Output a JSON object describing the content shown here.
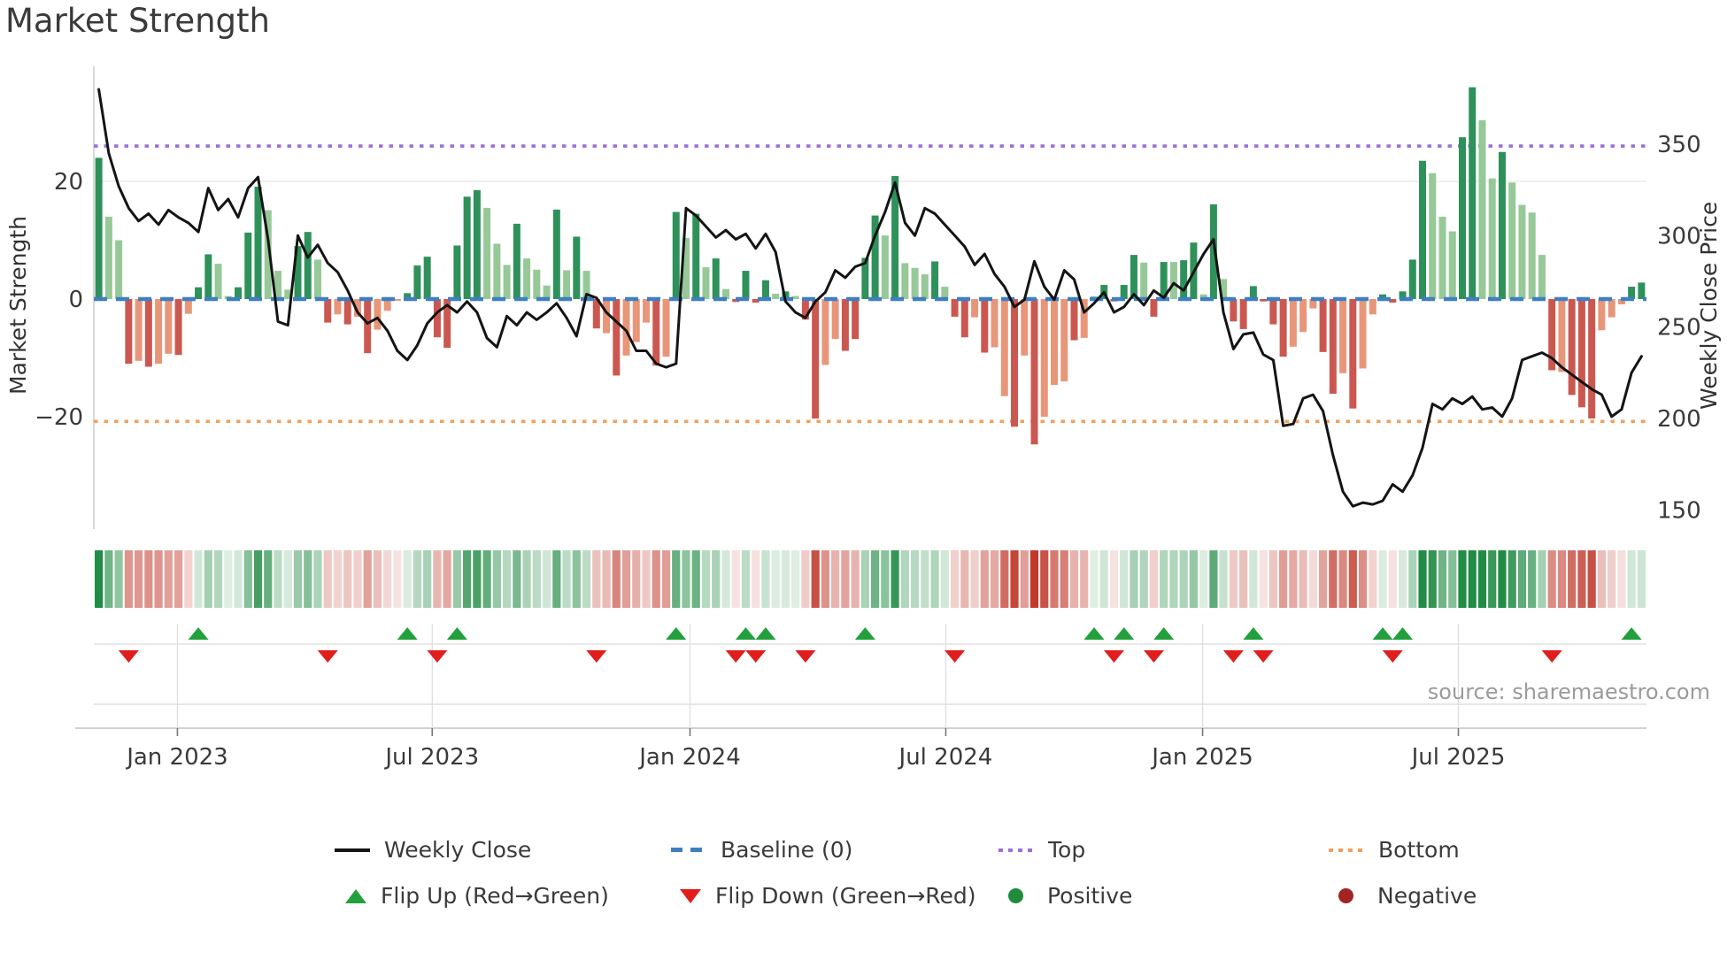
{
  "title": "Market Strength",
  "left_axis": {
    "label": "Market Strength",
    "ticks": [
      {
        "value": 20,
        "label": "20"
      },
      {
        "value": 0,
        "label": "0"
      },
      {
        "value": -20,
        "label": "−20"
      }
    ]
  },
  "right_axis": {
    "label": "Weekly Close Price",
    "ticks": [
      {
        "value": 350,
        "label": "350"
      },
      {
        "value": 300,
        "label": "300"
      },
      {
        "value": 250,
        "label": "250"
      },
      {
        "value": 200,
        "label": "200"
      },
      {
        "value": 150,
        "label": "150"
      }
    ]
  },
  "source": "source: sharemaestro.com",
  "palette": {
    "bar_dark_green": "#2f915a",
    "bar_light_green": "#97c897",
    "bar_salmon": "#e8967a",
    "bar_dark_red": "#cb5850",
    "price_line": "#141414",
    "baseline_blue": "#3e7fc1",
    "top_purple": "#9b6fd6",
    "bottom_orange": "#f0a05e",
    "flip_up_green": "#22a03c",
    "flip_down_red": "#e11e1e",
    "positive_dot": "#1f8b3b",
    "negative_dot": "#a32222",
    "heat_pos_base": "#228b45",
    "heat_neg_base": "#c0392b",
    "grid_light": "#ececec",
    "panel_grid": "#dcdcdc",
    "axis_line": "#c2c2c2",
    "tick_text": "#3a3a3a"
  },
  "legend": {
    "items": [
      {
        "id": "weekly-close",
        "label": "Weekly Close"
      },
      {
        "id": "baseline",
        "label": "Baseline (0)"
      },
      {
        "id": "top",
        "label": "Top"
      },
      {
        "id": "bottom",
        "label": "Bottom"
      },
      {
        "id": "flip-up",
        "label": "Flip Up (Red→Green)"
      },
      {
        "id": "flip-down",
        "label": "Flip Down (Green→Red)"
      },
      {
        "id": "positive",
        "label": "Positive"
      },
      {
        "id": "negative",
        "label": "Negative"
      }
    ]
  },
  "chart_data": {
    "type": "combo",
    "n_weeks": 156,
    "x_ticks": [
      {
        "week": 7.9,
        "label": "Jan 2023"
      },
      {
        "week": 33.5,
        "label": "Jul 2023"
      },
      {
        "week": 59.4,
        "label": "Jan 2024"
      },
      {
        "week": 85.1,
        "label": "Jul 2024"
      },
      {
        "week": 110.9,
        "label": "Jan 2025"
      },
      {
        "week": 136.6,
        "label": "Jul 2025"
      }
    ],
    "baseline_value": 0,
    "top_line_value": 26.0,
    "bottom_line_value": -20.8,
    "top_line_price": 350,
    "bottom_line_price": 198,
    "ylim_left": [
      -28,
      40
    ],
    "ylim_right": [
      145,
      390
    ],
    "series": [
      {
        "name": "Market Strength",
        "type": "bar",
        "values": [
          24,
          14,
          10,
          -11,
          -10.5,
          -11.5,
          -11,
          -9.3,
          -9.5,
          -2.5,
          2,
          7.6,
          6,
          0.5,
          2,
          11.3,
          19.1,
          15.1,
          4.8,
          1.6,
          9,
          11.4,
          6.7,
          -4,
          -2.6,
          -4.3,
          -3,
          -9.2,
          -5.2,
          -2,
          -0.3,
          1,
          5.7,
          7.2,
          -6.5,
          -8.3,
          9.1,
          17.4,
          18.5,
          15.5,
          9.4,
          5.8,
          12.8,
          6.9,
          5,
          2.3,
          15.2,
          4.9,
          10.6,
          4.8,
          -5,
          -5.8,
          -13,
          -9.6,
          -7.3,
          -4,
          -11.3,
          -9.8,
          14.8,
          10.4,
          14.5,
          5.4,
          6.9,
          1.7,
          -0.5,
          4.8,
          -0.6,
          3.2,
          0.9,
          1.3,
          0.5,
          -3.5,
          -20.3,
          -11.2,
          -6.8,
          -8.8,
          -6.8,
          7,
          14.2,
          10.8,
          20.9,
          6.1,
          5.3,
          4.2,
          6.4,
          2.1,
          -3,
          -6.5,
          -3.1,
          -9.1,
          -8.2,
          -16.5,
          -21.7,
          -9.6,
          -24.7,
          -20,
          -14.6,
          -14,
          -7,
          -6.6,
          0.4,
          2.4,
          -0.4,
          2.4,
          7.5,
          6.2,
          -3,
          6.3,
          6.3,
          6.6,
          9.6,
          0.8,
          16.1,
          3.4,
          -3.8,
          -5.1,
          2.2,
          -0.4,
          -4.3,
          -9.8,
          -8.1,
          -5.6,
          -1.6,
          -9,
          -16.1,
          -12.6,
          -18.6,
          -11.8,
          -2.6,
          0.8,
          -0.6,
          1.3,
          6.7,
          23.5,
          21.4,
          14,
          11.5,
          27.5,
          36,
          30.4,
          20.5,
          25,
          19.8,
          16,
          14.7,
          7.5,
          -12.1,
          -12.4,
          -16.3,
          -18.4,
          -20.3,
          -5.3,
          -3.1,
          -0.9,
          2.1,
          2.8
        ],
        "shades": "dllrsrssrsddlldddlllddlrsrsrsssdddrrdddllldllldldlrsrsssrsdldldlrdrdldlrrssrrddldllldlrrsrssrsrsssrsddrddlrdlddldlrrdrrrsssrrsrssdrdddlllddlldllllrsrrrsssdd",
        "shade_key": {
          "d": "dark green",
          "l": "light green",
          "s": "salmon",
          "r": "dark red"
        }
      },
      {
        "name": "Weekly Close",
        "type": "line",
        "values": [
          380,
          345,
          327,
          315,
          308,
          312,
          306,
          314,
          310,
          307,
          302,
          326,
          314,
          320,
          310,
          326,
          332,
          298,
          253,
          251,
          300,
          288,
          295,
          285,
          280,
          270,
          258,
          252,
          255,
          248,
          237,
          232,
          240,
          252,
          258,
          262,
          258,
          264,
          258,
          244,
          239,
          256,
          251,
          258,
          254,
          258,
          263,
          255,
          245,
          268,
          266,
          258,
          253,
          248,
          237,
          237,
          230,
          228,
          230,
          315,
          311,
          305,
          299,
          303,
          298,
          301,
          293,
          301,
          291,
          264,
          258,
          255,
          264,
          269,
          281,
          277,
          283,
          285,
          300,
          313,
          329,
          307,
          300,
          315,
          312,
          306,
          300,
          294,
          284,
          290,
          279,
          272,
          261,
          265,
          286,
          272,
          265,
          281,
          276,
          258,
          263,
          269,
          258,
          261,
          268,
          262,
          270,
          266,
          274,
          270,
          280,
          290,
          298,
          258,
          238,
          246,
          247,
          235,
          232,
          196,
          197,
          211,
          213,
          204,
          180,
          160,
          152,
          154,
          153,
          155,
          164,
          160,
          169,
          184,
          208,
          205,
          211,
          208,
          212,
          205,
          206,
          201,
          211,
          232,
          234,
          236,
          233,
          228,
          224,
          220,
          216,
          213,
          201,
          205,
          225,
          234
        ]
      },
      {
        "name": "Strength Heatmap",
        "type": "heatmap",
        "note": "color intensity follows Market Strength bar values"
      }
    ],
    "flip_up_weeks": [
      10,
      31,
      36,
      58,
      65,
      67,
      77,
      100,
      103,
      107,
      116,
      129,
      131,
      154
    ],
    "flip_down_weeks": [
      3,
      23,
      34,
      50,
      64,
      66,
      71,
      86,
      102,
      106,
      114,
      117,
      130,
      146
    ]
  }
}
